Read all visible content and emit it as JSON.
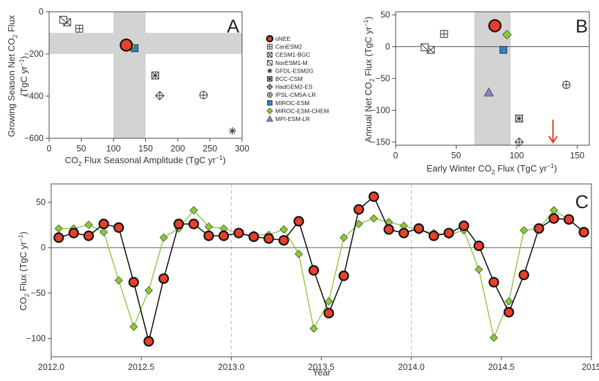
{
  "colors": {
    "onee_fill": "#e8402a",
    "chem_fill": "#8cc63f",
    "chem_line": "#8cc63f",
    "miroc_esm": "#3a7fb8",
    "mpi": "#8b84c6",
    "shade": "#d3d3d3",
    "axis": "#444444"
  },
  "legend": {
    "entries": [
      {
        "name": "oNEE",
        "marker": "filled-circle-red"
      },
      {
        "name": "CanESM2",
        "marker": "square-plus"
      },
      {
        "name": "CESM1-BGC",
        "marker": "square-x"
      },
      {
        "name": "NorESM1-M",
        "marker": "square-diagonal"
      },
      {
        "name": "GFDL-ESM2G",
        "marker": "asterisk"
      },
      {
        "name": "BCC-CSM",
        "marker": "square-cross-x"
      },
      {
        "name": "HadGEM2-ES",
        "marker": "diamond-plus"
      },
      {
        "name": "IPSL-CM5A-LR",
        "marker": "circle-plus"
      },
      {
        "name": "MIROC-ESM",
        "marker": "filled-square-blue"
      },
      {
        "name": "MIROC-ESM-CHEM",
        "marker": "filled-diamond-green"
      },
      {
        "name": "MPI-ESM-LR",
        "marker": "filled-triangle-purple"
      }
    ]
  },
  "chart_data": [
    {
      "panel": "A",
      "type": "scatter",
      "xlabel_main": "CO",
      "xlabel_sub": "2",
      "xlabel_rest": " Flux Seasonal Amplitude (TgC yr",
      "xlabel_sup": "−1",
      "xlabel_end": ")",
      "ylabel_line1": "Growing Season Net CO",
      "ylabel_line1_sub": "2",
      "ylabel_line1_rest": " Flux",
      "ylabel_line2": "(TgC yr",
      "ylabel_line2_sup": "−1",
      "ylabel_line2_end": ")",
      "xlim": [
        0,
        300
      ],
      "ylim": [
        -600,
        0
      ],
      "xticks": [
        0,
        50,
        100,
        150,
        200,
        250,
        300
      ],
      "yticks": [
        0,
        -200,
        -400,
        -600
      ],
      "shade_x": [
        100,
        150
      ],
      "shade_y": [
        -200,
        -100
      ],
      "points": [
        {
          "model": "oNEE",
          "x": 120,
          "y": -158
        },
        {
          "model": "CanESM2",
          "x": 47,
          "y": -80
        },
        {
          "model": "CESM1-BGC",
          "x": 28,
          "y": -50
        },
        {
          "model": "NorESM1-M",
          "x": 22,
          "y": -38
        },
        {
          "model": "GFDL-ESM2G",
          "x": 285,
          "y": -565
        },
        {
          "model": "BCC-CSM",
          "x": 165,
          "y": -302
        },
        {
          "model": "HadGEM2-ES",
          "x": 172,
          "y": -398
        },
        {
          "model": "IPSL-CM5A-LR",
          "x": 240,
          "y": -395
        },
        {
          "model": "MIROC-ESM",
          "x": 133,
          "y": -173
        },
        {
          "model": "MIROC-ESM-CHEM",
          "x": 127,
          "y": -163
        }
      ]
    },
    {
      "panel": "B",
      "type": "scatter",
      "xlabel_main": "Early Winter CO",
      "xlabel_sub": "2",
      "xlabel_rest": " Flux (TgC yr",
      "xlabel_sup": "−1",
      "xlabel_end": ")",
      "ylabel_line1": "Annual Net CO",
      "ylabel_line1_sub": "2",
      "ylabel_line1_rest": " Flux (TgC yr",
      "ylabel_line1_sup": "−1",
      "ylabel_line1_end": ")",
      "xlim": [
        0,
        160
      ],
      "ylim": [
        -155,
        55
      ],
      "xticks": [
        0,
        50,
        100,
        150
      ],
      "yticks": [
        50,
        0,
        -50,
        -100,
        -150
      ],
      "shade_x": [
        65,
        95
      ],
      "hline": 0,
      "arrow_x": 130,
      "points": [
        {
          "model": "oNEE",
          "x": 82,
          "y": 33
        },
        {
          "model": "CanESM2",
          "x": 40,
          "y": 20
        },
        {
          "model": "CESM1-BGC",
          "x": 29,
          "y": -5
        },
        {
          "model": "NorESM1-M",
          "x": 24,
          "y": -1
        },
        {
          "model": "BCC-CSM",
          "x": 102,
          "y": -113
        },
        {
          "model": "HadGEM2-ES",
          "x": 102,
          "y": -150
        },
        {
          "model": "IPSL-CM5A-LR",
          "x": 141,
          "y": -60
        },
        {
          "model": "MIROC-ESM",
          "x": 89,
          "y": -5
        },
        {
          "model": "MIROC-ESM-CHEM",
          "x": 92,
          "y": 19
        },
        {
          "model": "MPI-ESM-LR",
          "x": 77,
          "y": -72
        }
      ]
    },
    {
      "panel": "C",
      "type": "line",
      "xlabel": "Year",
      "ylabel_main": "CO",
      "ylabel_sub": "2",
      "ylabel_rest": " Flux (TgC yr",
      "ylabel_sup": "−1",
      "ylabel_end": ")",
      "xlim": [
        2012,
        2015
      ],
      "ylim": [
        -120,
        70
      ],
      "xticks": [
        "2012.0",
        "2012.5",
        "2013.0",
        "2013.5",
        "2014.0",
        "2014.5",
        "2015"
      ],
      "xtick_values": [
        2012,
        2012.5,
        2013,
        2013.5,
        2014,
        2014.5,
        2015
      ],
      "yticks": [
        50,
        0,
        -50,
        -100
      ],
      "vlines": [
        2013,
        2014
      ],
      "hline": 0,
      "x": [
        2012.0417,
        2012.125,
        2012.2083,
        2012.2917,
        2012.375,
        2012.4583,
        2012.5417,
        2012.625,
        2012.7083,
        2012.7917,
        2012.875,
        2012.9583,
        2013.0417,
        2013.125,
        2013.2083,
        2013.2917,
        2013.375,
        2013.4583,
        2013.5417,
        2013.625,
        2013.7083,
        2013.7917,
        2013.875,
        2013.9583,
        2014.0417,
        2014.125,
        2014.2083,
        2014.2917,
        2014.375,
        2014.4583,
        2014.5417,
        2014.625,
        2014.7083,
        2014.7917,
        2014.875,
        2014.9583
      ],
      "series": [
        {
          "name": "oNEE",
          "values": [
            11,
            16,
            13,
            26,
            22,
            -38,
            -103,
            -34,
            26,
            26,
            13,
            13,
            16,
            12,
            10,
            8,
            29,
            -25,
            -72,
            -31,
            42,
            56,
            20,
            16,
            21,
            13,
            16,
            24,
            2,
            -38,
            -71,
            -30,
            21,
            32,
            31,
            17
          ]
        },
        {
          "name": "MIROC-ESM-CHEM",
          "values": [
            21,
            21,
            25,
            17,
            -36,
            -87,
            -47,
            11,
            21,
            41,
            23,
            21,
            15,
            14,
            14,
            20,
            -7,
            -89,
            -59,
            11,
            26,
            32,
            28,
            24,
            19,
            16,
            14,
            19,
            -24,
            -99,
            -59,
            19,
            21,
            41,
            31,
            17
          ]
        }
      ]
    }
  ]
}
